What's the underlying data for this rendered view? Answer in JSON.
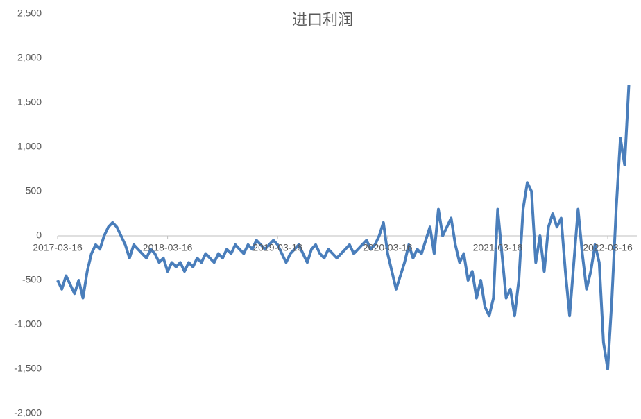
{
  "chart_data": {
    "type": "line",
    "title": "进口利润",
    "categories": [
      "2017-03-16",
      null,
      null,
      null,
      null,
      null,
      null,
      null,
      null,
      null,
      null,
      null,
      null,
      null,
      null,
      null,
      null,
      null,
      null,
      null,
      null,
      null,
      null,
      null,
      null,
      null,
      "2018-03-16",
      null,
      null,
      null,
      null,
      null,
      null,
      null,
      null,
      null,
      null,
      null,
      null,
      null,
      null,
      null,
      null,
      null,
      null,
      null,
      null,
      null,
      null,
      null,
      null,
      null,
      "2019-03-16",
      null,
      null,
      null,
      null,
      null,
      null,
      null,
      null,
      null,
      null,
      null,
      null,
      null,
      null,
      null,
      null,
      null,
      null,
      null,
      null,
      null,
      null,
      null,
      null,
      null,
      "2020-03-16",
      null,
      null,
      null,
      null,
      null,
      null,
      null,
      null,
      null,
      null,
      null,
      null,
      null,
      null,
      null,
      null,
      null,
      null,
      null,
      null,
      null,
      null,
      null,
      null,
      null,
      "2021-03-16",
      null,
      null,
      null,
      null,
      null,
      null,
      null,
      null,
      null,
      null,
      null,
      null,
      null,
      null,
      null,
      null,
      null,
      null,
      null,
      null,
      null,
      null,
      null,
      null,
      null,
      "2022-03-16",
      null,
      null,
      null,
      null,
      null
    ],
    "series": [
      {
        "name": "进口利润",
        "color": "#4a7ebb",
        "values": [
          -500,
          -600,
          -450,
          -550,
          -650,
          -500,
          -700,
          -400,
          -200,
          -100,
          -150,
          0,
          100,
          150,
          100,
          0,
          -100,
          -250,
          -100,
          -150,
          -200,
          -250,
          -150,
          -200,
          -300,
          -250,
          -400,
          -300,
          -350,
          -300,
          -400,
          -300,
          -350,
          -250,
          -300,
          -200,
          -250,
          -300,
          -200,
          -250,
          -150,
          -200,
          -100,
          -150,
          -200,
          -100,
          -150,
          -50,
          -100,
          -150,
          -100,
          -50,
          -100,
          -200,
          -300,
          -200,
          -150,
          -100,
          -200,
          -300,
          -150,
          -100,
          -200,
          -250,
          -150,
          -200,
          -250,
          -200,
          -150,
          -100,
          -200,
          -150,
          -100,
          -50,
          -150,
          -100,
          0,
          150,
          -200,
          -400,
          -600,
          -450,
          -300,
          -100,
          -250,
          -150,
          -200,
          -50,
          100,
          -200,
          300,
          0,
          100,
          200,
          -100,
          -300,
          -200,
          -500,
          -400,
          -700,
          -500,
          -800,
          -900,
          -700,
          300,
          -200,
          -700,
          -600,
          -900,
          -500,
          300,
          600,
          500,
          -300,
          0,
          -400,
          100,
          250,
          100,
          200,
          -400,
          -900,
          -300,
          300,
          -200,
          -600,
          -400,
          -100,
          -300,
          -1200,
          -1500,
          -700,
          300,
          1100,
          800,
          1700
        ]
      }
    ],
    "ylim": [
      -2000,
      2500
    ],
    "yticks": [
      {
        "value": -2000,
        "label": "-2,000"
      },
      {
        "value": -1500,
        "label": "-1,500"
      },
      {
        "value": -1000,
        "label": "-1,000"
      },
      -500,
      0,
      500,
      {
        "value": 1000,
        "label": "1,000"
      },
      {
        "value": 1500,
        "label": "1,500"
      },
      {
        "value": 2000,
        "label": "2,000"
      },
      {
        "value": 2500,
        "label": "2,500"
      }
    ]
  }
}
